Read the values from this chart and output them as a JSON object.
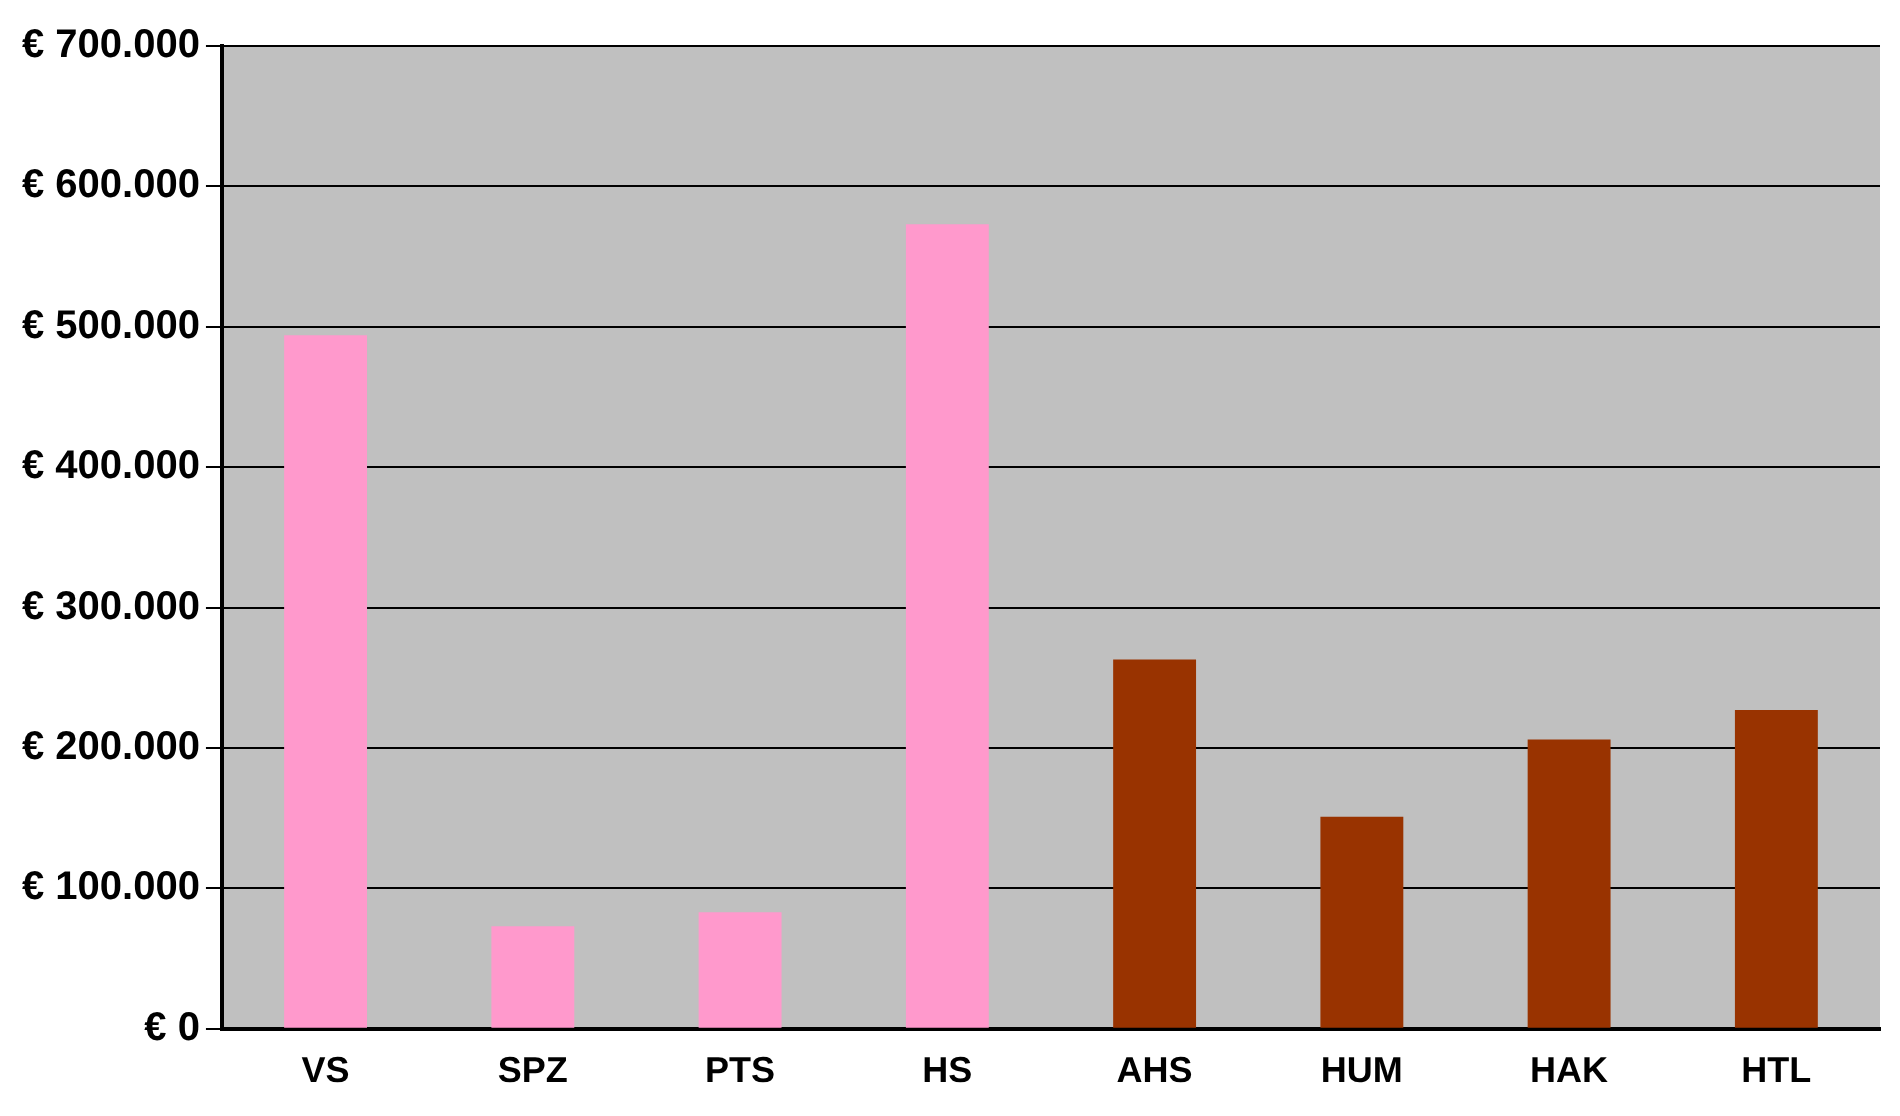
{
  "chart_data": {
    "type": "bar",
    "categories": [
      "VS",
      "SPZ",
      "PTS",
      "HS",
      "AHS",
      "HUM",
      "HAK",
      "HTL"
    ],
    "values": [
      494000,
      73000,
      83000,
      573000,
      263000,
      151000,
      206000,
      227000
    ],
    "colors": [
      "#ff99cc",
      "#ff99cc",
      "#ff99cc",
      "#ff99cc",
      "#993300",
      "#993300",
      "#993300",
      "#993300"
    ],
    "ylim": [
      0,
      700000
    ],
    "yticks": [
      {
        "value": 0,
        "label": "€ 0"
      },
      {
        "value": 100000,
        "label": "€ 100.000"
      },
      {
        "value": 200000,
        "label": "€ 200.000"
      },
      {
        "value": 300000,
        "label": "€ 300.000"
      },
      {
        "value": 400000,
        "label": "€ 400.000"
      },
      {
        "value": 500000,
        "label": "€ 500.000"
      },
      {
        "value": 600000,
        "label": "€ 600.000"
      },
      {
        "value": 700000,
        "label": "€ 700.000"
      }
    ],
    "grid": "y",
    "legend": false
  }
}
